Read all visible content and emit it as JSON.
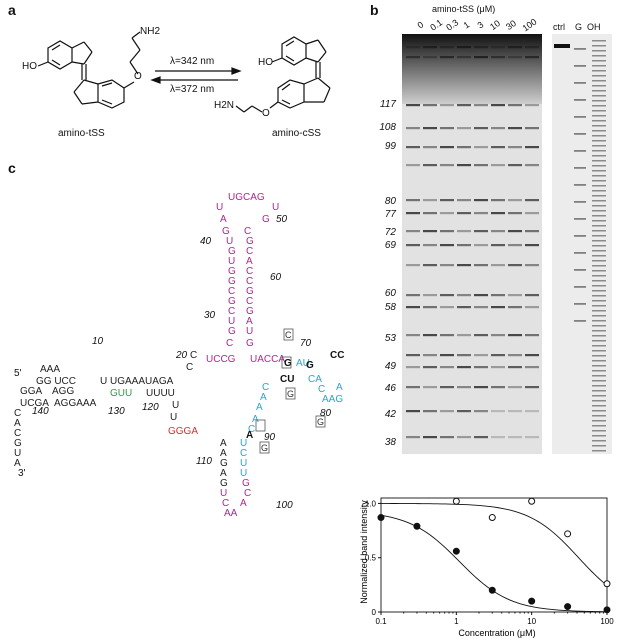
{
  "panels": {
    "a": "a",
    "b": "b",
    "c": "c"
  },
  "panel_a": {
    "left_molecule": "amino-tSS",
    "right_molecule": "amino-cSS",
    "nh2": "NH2",
    "h2n": "H2N",
    "ho": "HO",
    "o": "O",
    "forward": "λ=342 nm",
    "reverse": "λ=372 nm"
  },
  "panel_b": {
    "title": "amino-tSS (μM)",
    "lanes": [
      "0",
      "0.1",
      "0.3",
      "1",
      "3",
      "10",
      "30",
      "100"
    ],
    "controls": [
      "ctrl",
      "G",
      "OH"
    ],
    "positions": [
      "117",
      "108",
      "99",
      "80",
      "77",
      "72",
      "69",
      "60",
      "58",
      "53",
      "49",
      "46",
      "42",
      "38"
    ]
  },
  "panel_c": {
    "numbers": [
      "10",
      "20",
      "30",
      "40",
      "50",
      "60",
      "70",
      "80",
      "90",
      "100",
      "110",
      "120",
      "130",
      "140"
    ],
    "five_prime": "5'",
    "three_prime": "3'"
  },
  "chart_data": {
    "type": "scatter",
    "xlabel": "Concentration (μM)",
    "ylabel": "Normalized band intensity",
    "x_scale": "log",
    "xlim": [
      0.1,
      100
    ],
    "ylim": [
      0,
      1.05
    ],
    "x_ticks": [
      "0.1",
      "1",
      "10",
      "100"
    ],
    "y_ticks": [
      "0",
      "0.5",
      "1.0"
    ],
    "series": [
      {
        "marker": "open",
        "x": [
          1,
          3,
          10,
          30,
          100
        ],
        "y": [
          1.02,
          0.87,
          1.02,
          0.72,
          0.26
        ]
      },
      {
        "marker": "filled",
        "x": [
          0.1,
          0.3,
          1,
          3,
          10,
          30,
          100
        ],
        "y": [
          0.87,
          0.79,
          0.56,
          0.2,
          0.1,
          0.05,
          0.02
        ]
      }
    ]
  }
}
